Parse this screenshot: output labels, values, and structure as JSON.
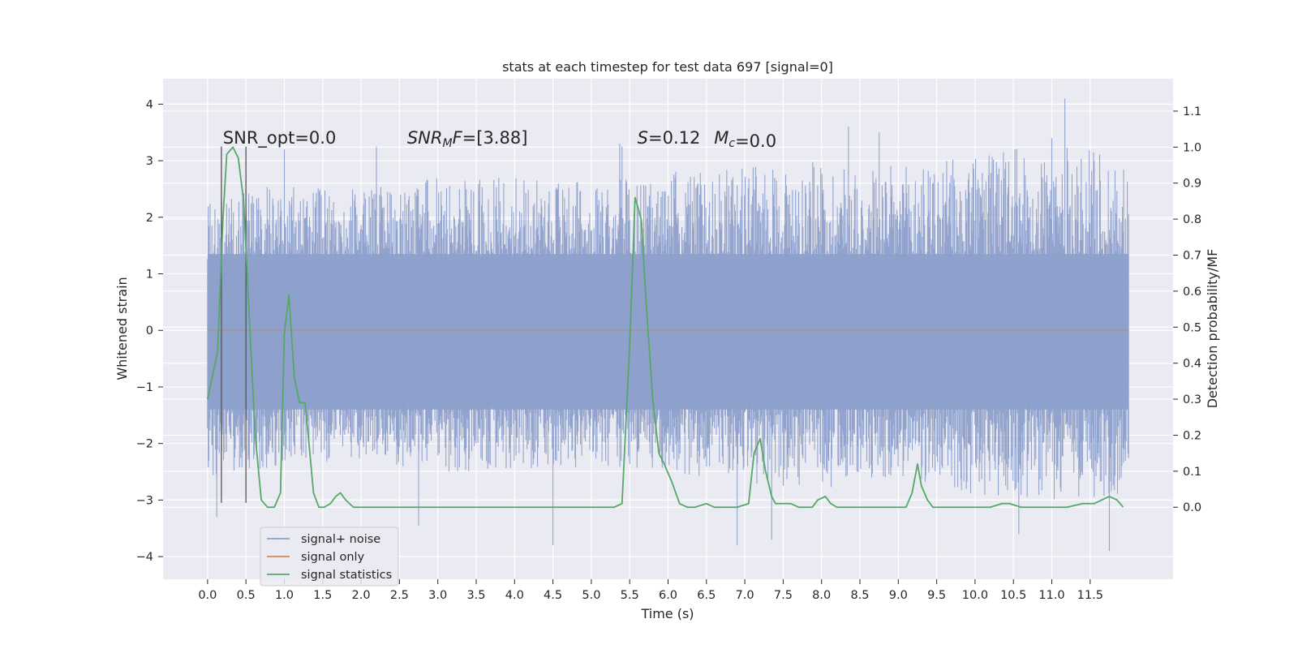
{
  "chart_data": {
    "type": "line",
    "title": "stats at each timestep for test data 697 [signal=0]",
    "xlabel": "Time (s)",
    "ylabel": "Whitened strain",
    "ylabel_right": "Detection probability/MF",
    "xlim": [
      -0.58,
      12.58
    ],
    "ylim": [
      -4.4,
      4.45
    ],
    "ylim_right": [
      -0.2,
      1.19
    ],
    "x_ticks": [
      "0.0",
      "0.5",
      "1.0",
      "1.5",
      "2.0",
      "2.5",
      "3.0",
      "3.5",
      "4.0",
      "4.5",
      "5.0",
      "5.5",
      "6.0",
      "6.5",
      "7.0",
      "7.5",
      "8.0",
      "8.5",
      "9.0",
      "9.5",
      "10.0",
      "10.5",
      "11.0",
      "11.5"
    ],
    "y_ticks_left": [
      "4",
      "3",
      "2",
      "1",
      "0",
      "−1",
      "−2",
      "−3",
      "−4"
    ],
    "y_ticks_right": [
      "1.1",
      "1.0",
      "0.9",
      "0.8",
      "0.7",
      "0.6",
      "0.5",
      "0.4",
      "0.3",
      "0.2",
      "0.1",
      "0.0"
    ],
    "grid": true,
    "legend_placement": "lower-left",
    "series": [
      {
        "name": "signal+ noise",
        "axis": "left",
        "color": "#8da0cb",
        "kind": "noise",
        "x_range": [
          0.0,
          12.0
        ],
        "y_range": [
          -3.9,
          4.1
        ],
        "typical_band": [
          -1.4,
          1.35
        ],
        "envelope_upper": [
          [
            0.0,
            2.3
          ],
          [
            1.0,
            2.6
          ],
          [
            2.0,
            2.5
          ],
          [
            3.0,
            2.7
          ],
          [
            4.0,
            2.7
          ],
          [
            5.0,
            2.6
          ],
          [
            6.0,
            2.8
          ],
          [
            7.0,
            2.9
          ],
          [
            8.0,
            3.0
          ],
          [
            9.0,
            2.9
          ],
          [
            10.0,
            3.1
          ],
          [
            11.0,
            3.3
          ],
          [
            12.0,
            3.1
          ]
        ],
        "envelope_lower": [
          [
            0.0,
            -2.6
          ],
          [
            1.0,
            -2.4
          ],
          [
            2.0,
            -2.3
          ],
          [
            3.0,
            -2.5
          ],
          [
            4.0,
            -2.5
          ],
          [
            5.0,
            -2.4
          ],
          [
            6.0,
            -2.5
          ],
          [
            7.0,
            -2.7
          ],
          [
            8.0,
            -2.8
          ],
          [
            9.0,
            -2.6
          ],
          [
            10.0,
            -2.9
          ],
          [
            11.0,
            -3.0
          ],
          [
            12.0,
            -2.9
          ]
        ],
        "spikes": [
          [
            0.12,
            -3.3
          ],
          [
            1.0,
            3.2
          ],
          [
            2.2,
            3.25
          ],
          [
            2.75,
            -3.45
          ],
          [
            4.5,
            -3.8
          ],
          [
            5.37,
            3.3
          ],
          [
            5.4,
            3.25
          ],
          [
            6.9,
            -3.8
          ],
          [
            7.35,
            -3.7
          ],
          [
            8.35,
            3.6
          ],
          [
            8.75,
            3.5
          ],
          [
            10.37,
            3.15
          ],
          [
            10.57,
            -3.6
          ],
          [
            11.0,
            3.4
          ],
          [
            11.17,
            4.1
          ],
          [
            11.75,
            -3.9
          ]
        ]
      },
      {
        "name": "signal only",
        "axis": "left",
        "color": "#dd8452",
        "x": [
          0.0,
          12.0
        ],
        "y": [
          0.0,
          0.0
        ]
      },
      {
        "name": "signal statistics",
        "axis": "right",
        "color": "#55a868",
        "x": [
          0.0,
          0.13,
          0.2,
          0.25,
          0.33,
          0.4,
          0.47,
          0.55,
          0.62,
          0.7,
          0.78,
          0.87,
          0.95,
          1.0,
          1.06,
          1.13,
          1.2,
          1.27,
          1.32,
          1.38,
          1.45,
          1.52,
          1.6,
          1.67,
          1.73,
          1.8,
          1.9,
          2.0,
          2.2,
          2.4,
          2.6,
          2.8,
          3.0,
          3.5,
          4.0,
          4.5,
          5.0,
          5.3,
          5.4,
          5.5,
          5.57,
          5.65,
          5.72,
          5.8,
          5.88,
          5.95,
          6.05,
          6.15,
          6.25,
          6.35,
          6.5,
          6.6,
          6.75,
          6.9,
          7.05,
          7.12,
          7.2,
          7.27,
          7.35,
          7.4,
          7.5,
          7.6,
          7.7,
          7.8,
          7.88,
          7.95,
          8.05,
          8.12,
          8.2,
          8.3,
          8.5,
          8.8,
          9.0,
          9.1,
          9.18,
          9.25,
          9.3,
          9.38,
          9.45,
          9.6,
          9.8,
          10.0,
          10.2,
          10.35,
          10.45,
          10.6,
          10.8,
          11.0,
          11.2,
          11.4,
          11.55,
          11.65,
          11.75,
          11.85,
          11.93
        ],
        "y": [
          0.3,
          0.43,
          0.8,
          0.98,
          1.0,
          0.97,
          0.85,
          0.5,
          0.2,
          0.02,
          0.0,
          0.0,
          0.04,
          0.48,
          0.59,
          0.36,
          0.29,
          0.29,
          0.18,
          0.04,
          0.0,
          0.0,
          0.01,
          0.03,
          0.04,
          0.02,
          0.0,
          0.0,
          0.0,
          0.0,
          0.0,
          0.0,
          0.0,
          0.0,
          0.0,
          0.0,
          0.0,
          0.0,
          0.01,
          0.45,
          0.86,
          0.8,
          0.55,
          0.3,
          0.15,
          0.12,
          0.07,
          0.01,
          0.0,
          0.0,
          0.01,
          0.0,
          0.0,
          0.0,
          0.01,
          0.15,
          0.19,
          0.1,
          0.03,
          0.01,
          0.01,
          0.01,
          0.0,
          0.0,
          0.0,
          0.02,
          0.03,
          0.01,
          0.0,
          0.0,
          0.0,
          0.0,
          0.0,
          0.0,
          0.04,
          0.12,
          0.06,
          0.02,
          0.0,
          0.0,
          0.0,
          0.0,
          0.0,
          0.01,
          0.01,
          0.0,
          0.0,
          0.0,
          0.0,
          0.01,
          0.01,
          0.02,
          0.03,
          0.02,
          0.0
        ]
      }
    ],
    "vertical_markers": {
      "color": "#555555",
      "x": [
        0.18,
        0.5
      ],
      "y_range": [
        -3.05,
        3.25
      ]
    },
    "annotations": [
      {
        "text": "SNR_opt=0.0",
        "x": 0.2,
        "y": 3.3
      },
      {
        "text": "SNR",
        "sub": "MF",
        "after": "=[3.88]",
        "italic_parts": [
          "SNR",
          "F"
        ],
        "x": 2.6,
        "y": 3.3
      },
      {
        "text": "S",
        "after": "=0.12",
        "x": 5.6,
        "y": 3.3
      },
      {
        "text": "M",
        "sub": "c",
        "after": "=0.0",
        "x": 6.6,
        "y": 3.3
      }
    ]
  }
}
